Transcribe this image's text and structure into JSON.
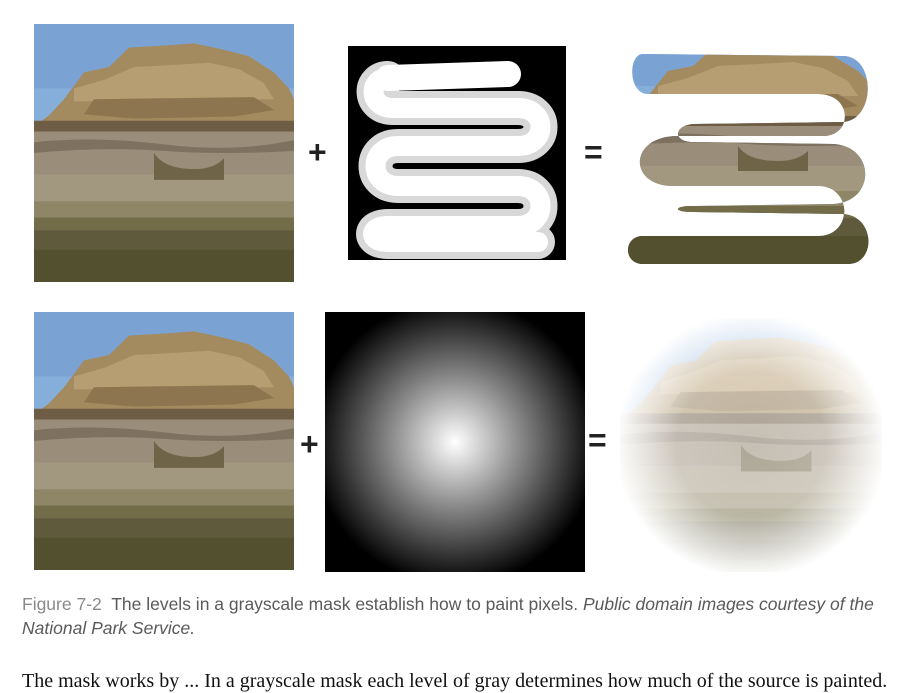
{
  "figure": {
    "rows": [
      {
        "source": "rock-cliff-photo",
        "operator_plus": "+",
        "mask": "grayscale-s-curve-mask",
        "operator_equals": "=",
        "result": "photo-clipped-to-s-curve"
      },
      {
        "source": "rock-cliff-photo",
        "operator_plus": "+",
        "mask": "radial-gradient-mask",
        "operator_equals": "=",
        "result": "photo-faded-by-radial-gradient"
      }
    ]
  },
  "caption": {
    "figure_number": "Figure 7-2",
    "text": "The levels in a grayscale mask establish how to paint pixels.",
    "credit": "Public domain images courtesy of the National Park Service."
  },
  "body_text": "The mask works by ... In a grayscale mask each level of gray determines how much of the source is painted.",
  "colors": {
    "sky": "#7ba6d6",
    "rock": "#a68e6a",
    "grass": "#5e5a3a",
    "mask_white": "#ffffff",
    "mask_black": "#000000"
  }
}
